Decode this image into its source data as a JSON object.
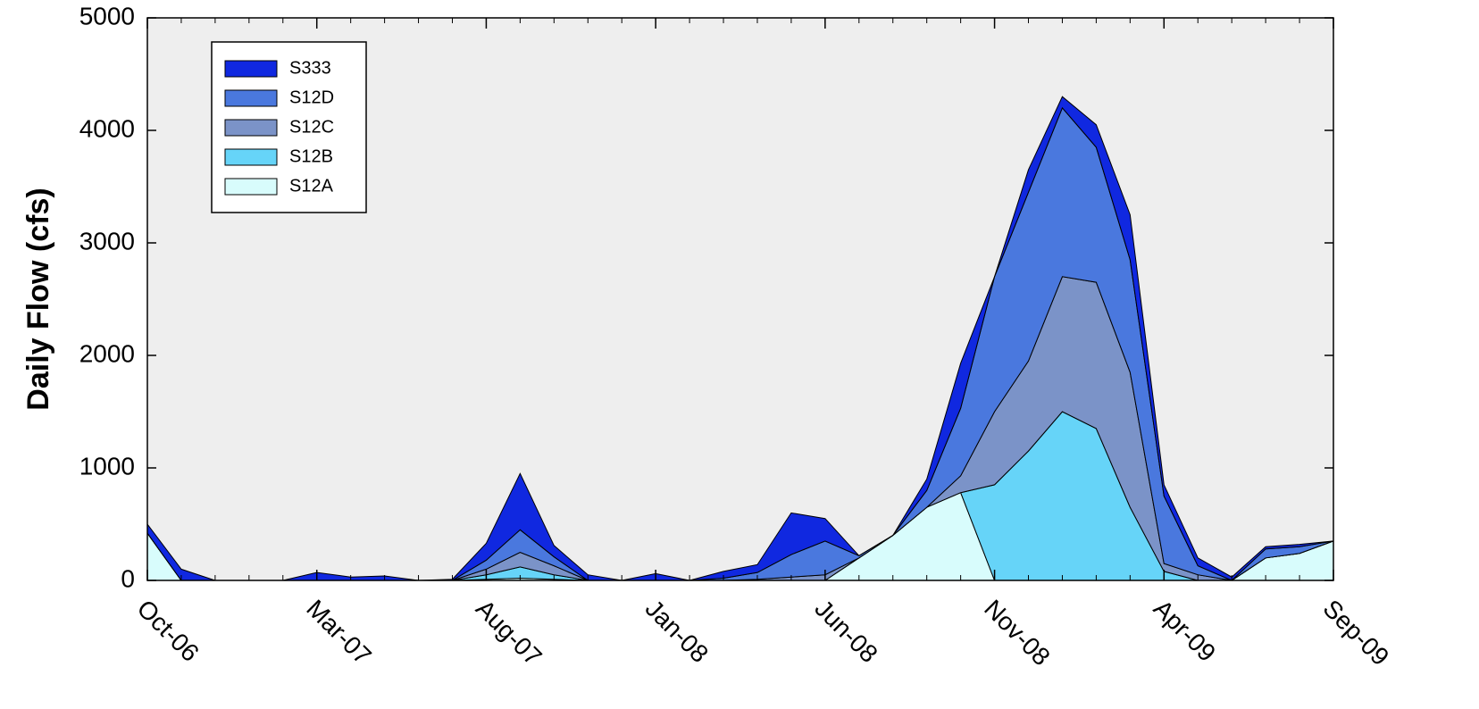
{
  "chart_data": {
    "type": "stacked_area",
    "y_label": "Daily Flow (cfs)",
    "x": [
      "Oct-06",
      "Nov-06",
      "Dec-06",
      "Jan-07",
      "Feb-07",
      "Mar-07",
      "Apr-07",
      "May-07",
      "Jun-07",
      "Jul-07",
      "Aug-07",
      "Sep-07",
      "Oct-07",
      "Nov-07",
      "Dec-07",
      "Jan-08",
      "Feb-08",
      "Mar-08",
      "Apr-08",
      "May-08",
      "Jun-08",
      "Jul-08",
      "Aug-08",
      "Sep-08",
      "Oct-08",
      "Nov-08",
      "Dec-08",
      "Jan-09",
      "Feb-09",
      "Mar-09",
      "Apr-09",
      "May-09",
      "Jun-09",
      "Jul-09",
      "Aug-09",
      "Sep-09"
    ],
    "xticks": [
      "Oct-06",
      "Mar-07",
      "Aug-07",
      "Jan-08",
      "Jun-08",
      "Nov-08",
      "Apr-09",
      "Sep-09"
    ],
    "ylim": [
      0,
      5000
    ],
    "yticks": [
      0,
      1000,
      2000,
      3000,
      4000,
      5000
    ],
    "legend": "upper-left",
    "series": [
      {
        "name": "S333",
        "color": "#1028e0",
        "values": [
          80,
          100,
          0,
          0,
          0,
          70,
          30,
          40,
          0,
          10,
          150,
          500,
          100,
          50,
          0,
          60,
          0,
          60,
          70,
          370,
          200,
          0,
          0,
          100,
          400,
          0,
          200,
          100,
          200,
          400,
          100,
          70,
          30,
          20,
          20,
          0
        ]
      },
      {
        "name": "S12D",
        "color": "#4a78de",
        "values": [
          0,
          0,
          0,
          0,
          0,
          0,
          0,
          0,
          0,
          0,
          80,
          200,
          80,
          0,
          0,
          0,
          0,
          20,
          60,
          200,
          300,
          20,
          0,
          150,
          600,
          1200,
          1500,
          1500,
          1200,
          1000,
          600,
          80,
          0,
          80,
          60,
          0
        ]
      },
      {
        "name": "S12C",
        "color": "#7b93c8",
        "values": [
          0,
          0,
          0,
          0,
          0,
          0,
          0,
          0,
          0,
          0,
          50,
          130,
          80,
          0,
          0,
          0,
          0,
          0,
          10,
          30,
          50,
          0,
          0,
          0,
          150,
          650,
          800,
          1200,
          1300,
          1200,
          70,
          50,
          0,
          0,
          0,
          0
        ]
      },
      {
        "name": "S12B",
        "color": "#66d4f8",
        "values": [
          0,
          0,
          0,
          0,
          0,
          0,
          0,
          0,
          0,
          0,
          40,
          100,
          40,
          0,
          0,
          0,
          0,
          0,
          0,
          0,
          0,
          0,
          0,
          0,
          0,
          850,
          1150,
          1500,
          1350,
          650,
          80,
          0,
          0,
          0,
          0,
          0
        ]
      },
      {
        "name": "S12A",
        "color": "#d8fcfc",
        "values": [
          420,
          0,
          0,
          0,
          0,
          0,
          0,
          0,
          0,
          0,
          10,
          20,
          10,
          0,
          0,
          0,
          0,
          0,
          0,
          0,
          0,
          200,
          400,
          650,
          780,
          0,
          0,
          0,
          0,
          0,
          0,
          0,
          0,
          200,
          240,
          350
        ]
      }
    ]
  }
}
